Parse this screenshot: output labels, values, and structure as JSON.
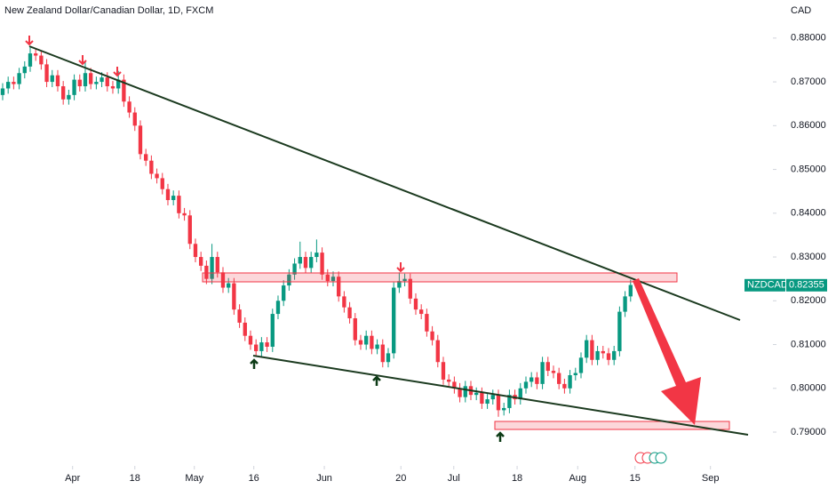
{
  "chart_data": {
    "type": "candlestick",
    "title": "New Zealand Dollar/Canadian Dollar, 1D, FXCM",
    "currency": "CAD",
    "up_color": "#089981",
    "down_color": "#f23645",
    "last_price": {
      "name": "NZDCAD",
      "value": 0.82355
    },
    "xlim": [
      -0.48,
      139.84
    ],
    "xticks": [
      {
        "value": 12.7,
        "label": "Apr"
      },
      {
        "value": 24.0,
        "label": "18"
      },
      {
        "value": 34.8,
        "label": "May"
      },
      {
        "value": 45.6,
        "label": "16"
      },
      {
        "value": 58.4,
        "label": "Jun"
      },
      {
        "value": 72.3,
        "label": "20"
      },
      {
        "value": 81.9,
        "label": "Jul"
      },
      {
        "value": 93.4,
        "label": "18"
      },
      {
        "value": 104.4,
        "label": "Aug"
      },
      {
        "value": 114.8,
        "label": "15"
      },
      {
        "value": 128.5,
        "label": "Sep"
      }
    ],
    "ylim": [
      0.7831,
      0.8887
    ],
    "yticks": [
      {
        "value": 0.79,
        "label": "0.79000"
      },
      {
        "value": 0.8,
        "label": "0.80000"
      },
      {
        "value": 0.81,
        "label": "0.81000"
      },
      {
        "value": 0.82,
        "label": "0.82000"
      },
      {
        "value": 0.83,
        "label": "0.83000"
      },
      {
        "value": 0.84,
        "label": "0.84000"
      },
      {
        "value": 0.85,
        "label": "0.85000"
      },
      {
        "value": 0.86,
        "label": "0.86000"
      },
      {
        "value": 0.87,
        "label": "0.87000"
      },
      {
        "value": 0.88,
        "label": "0.88000"
      }
    ],
    "ohlc": [
      [
        0.867,
        0.8697,
        0.8658,
        0.8685
      ],
      [
        0.8685,
        0.8712,
        0.8673,
        0.87
      ],
      [
        0.87,
        0.8712,
        0.8683,
        0.8695
      ],
      [
        0.8695,
        0.8732,
        0.8683,
        0.872
      ],
      [
        0.872,
        0.8747,
        0.8708,
        0.8735
      ],
      [
        0.8735,
        0.878,
        0.8723,
        0.8765
      ],
      [
        0.8765,
        0.8777,
        0.8748,
        0.876
      ],
      [
        0.876,
        0.8772,
        0.8728,
        0.874
      ],
      [
        0.874,
        0.8752,
        0.8688,
        0.87
      ],
      [
        0.87,
        0.8727,
        0.8688,
        0.8715
      ],
      [
        0.8715,
        0.8727,
        0.8678,
        0.869
      ],
      [
        0.869,
        0.8702,
        0.8648,
        0.866
      ],
      [
        0.866,
        0.8682,
        0.8648,
        0.867
      ],
      [
        0.867,
        0.8717,
        0.8658,
        0.8705
      ],
      [
        0.8705,
        0.8717,
        0.8678,
        0.869
      ],
      [
        0.869,
        0.8745,
        0.8678,
        0.872
      ],
      [
        0.872,
        0.8732,
        0.8683,
        0.8695
      ],
      [
        0.8695,
        0.8712,
        0.8683,
        0.87
      ],
      [
        0.87,
        0.8722,
        0.8688,
        0.871
      ],
      [
        0.871,
        0.8722,
        0.8678,
        0.869
      ],
      [
        0.869,
        0.8702,
        0.8673,
        0.8685
      ],
      [
        0.8685,
        0.8725,
        0.8673,
        0.8705
      ],
      [
        0.8705,
        0.8717,
        0.8643,
        0.8655
      ],
      [
        0.8655,
        0.8667,
        0.8618,
        0.863
      ],
      [
        0.863,
        0.8642,
        0.8588,
        0.86
      ],
      [
        0.86,
        0.8612,
        0.8523,
        0.8535
      ],
      [
        0.8535,
        0.8547,
        0.8508,
        0.852
      ],
      [
        0.852,
        0.8532,
        0.8478,
        0.849
      ],
      [
        0.849,
        0.8502,
        0.8468,
        0.848
      ],
      [
        0.848,
        0.8492,
        0.8443,
        0.8455
      ],
      [
        0.8455,
        0.8467,
        0.8418,
        0.843
      ],
      [
        0.843,
        0.8452,
        0.8418,
        0.844
      ],
      [
        0.844,
        0.8452,
        0.8388,
        0.84
      ],
      [
        0.84,
        0.8412,
        0.8383,
        0.8395
      ],
      [
        0.8395,
        0.8407,
        0.8318,
        0.833
      ],
      [
        0.833,
        0.8342,
        0.8288,
        0.83
      ],
      [
        0.83,
        0.8312,
        0.8268,
        0.828
      ],
      [
        0.828,
        0.8292,
        0.8238,
        0.825
      ],
      [
        0.825,
        0.833,
        0.8238,
        0.83
      ],
      [
        0.83,
        0.8312,
        0.8253,
        0.8265
      ],
      [
        0.8265,
        0.8277,
        0.8218,
        0.823
      ],
      [
        0.823,
        0.8252,
        0.8218,
        0.824
      ],
      [
        0.824,
        0.8252,
        0.8168,
        0.818
      ],
      [
        0.818,
        0.8192,
        0.8138,
        0.815
      ],
      [
        0.815,
        0.8162,
        0.8108,
        0.812
      ],
      [
        0.812,
        0.8132,
        0.8088,
        0.81
      ],
      [
        0.81,
        0.8112,
        0.8073,
        0.8085
      ],
      [
        0.8085,
        0.8117,
        0.8073,
        0.8105
      ],
      [
        0.8105,
        0.8117,
        0.8083,
        0.8095
      ],
      [
        0.8095,
        0.8182,
        0.8083,
        0.817
      ],
      [
        0.817,
        0.8212,
        0.8158,
        0.82
      ],
      [
        0.82,
        0.8247,
        0.8188,
        0.8235
      ],
      [
        0.8235,
        0.8272,
        0.8223,
        0.826
      ],
      [
        0.826,
        0.8297,
        0.8248,
        0.8285
      ],
      [
        0.8285,
        0.8335,
        0.8273,
        0.83
      ],
      [
        0.83,
        0.8312,
        0.8263,
        0.8275
      ],
      [
        0.8275,
        0.8312,
        0.8263,
        0.83
      ],
      [
        0.83,
        0.834,
        0.8288,
        0.831
      ],
      [
        0.831,
        0.8322,
        0.8248,
        0.826
      ],
      [
        0.826,
        0.8272,
        0.8233,
        0.8245
      ],
      [
        0.8245,
        0.8267,
        0.8233,
        0.8255
      ],
      [
        0.8255,
        0.8267,
        0.8198,
        0.821
      ],
      [
        0.821,
        0.8222,
        0.8173,
        0.8185
      ],
      [
        0.8185,
        0.8197,
        0.8148,
        0.816
      ],
      [
        0.816,
        0.8172,
        0.8098,
        0.811
      ],
      [
        0.811,
        0.8122,
        0.8088,
        0.81
      ],
      [
        0.81,
        0.8132,
        0.8088,
        0.812
      ],
      [
        0.812,
        0.8132,
        0.8078,
        0.809
      ],
      [
        0.809,
        0.8112,
        0.8078,
        0.81
      ],
      [
        0.81,
        0.8112,
        0.8048,
        0.806
      ],
      [
        0.806,
        0.8092,
        0.8048,
        0.808
      ],
      [
        0.808,
        0.8242,
        0.8068,
        0.823
      ],
      [
        0.823,
        0.8265,
        0.8218,
        0.8245
      ],
      [
        0.8245,
        0.8262,
        0.8233,
        0.825
      ],
      [
        0.825,
        0.8262,
        0.8193,
        0.8205
      ],
      [
        0.8205,
        0.8217,
        0.8168,
        0.818
      ],
      [
        0.818,
        0.8192,
        0.8158,
        0.817
      ],
      [
        0.817,
        0.8182,
        0.8118,
        0.813
      ],
      [
        0.813,
        0.8142,
        0.8098,
        0.811
      ],
      [
        0.811,
        0.8122,
        0.8048,
        0.806
      ],
      [
        0.806,
        0.8072,
        0.8008,
        0.802
      ],
      [
        0.802,
        0.8032,
        0.8003,
        0.8015
      ],
      [
        0.8015,
        0.8027,
        0.7988,
        0.8
      ],
      [
        0.8,
        0.8012,
        0.7968,
        0.798
      ],
      [
        0.798,
        0.8017,
        0.7968,
        0.8005
      ],
      [
        0.8005,
        0.8017,
        0.7973,
        0.7985
      ],
      [
        0.7985,
        0.8002,
        0.7973,
        0.799
      ],
      [
        0.799,
        0.8002,
        0.7953,
        0.7965
      ],
      [
        0.7965,
        0.7987,
        0.7953,
        0.7975
      ],
      [
        0.7975,
        0.7997,
        0.7963,
        0.7985
      ],
      [
        0.7985,
        0.7997,
        0.7935,
        0.795
      ],
      [
        0.795,
        0.7967,
        0.7938,
        0.7955
      ],
      [
        0.7955,
        0.7997,
        0.7943,
        0.7985
      ],
      [
        0.7985,
        0.7997,
        0.7963,
        0.7975
      ],
      [
        0.7975,
        0.8012,
        0.7963,
        0.8
      ],
      [
        0.8,
        0.8027,
        0.7988,
        0.8015
      ],
      [
        0.8015,
        0.8037,
        0.8003,
        0.8025
      ],
      [
        0.8025,
        0.8037,
        0.7998,
        0.801
      ],
      [
        0.801,
        0.8072,
        0.7998,
        0.806
      ],
      [
        0.806,
        0.8072,
        0.8028,
        0.804
      ],
      [
        0.804,
        0.8052,
        0.8023,
        0.8035
      ],
      [
        0.8035,
        0.8047,
        0.7998,
        0.801
      ],
      [
        0.801,
        0.8022,
        0.7988,
        0.8
      ],
      [
        0.8,
        0.8042,
        0.7988,
        0.803
      ],
      [
        0.803,
        0.8047,
        0.8018,
        0.8035
      ],
      [
        0.8035,
        0.8082,
        0.8023,
        0.807
      ],
      [
        0.807,
        0.8122,
        0.8058,
        0.811
      ],
      [
        0.811,
        0.8122,
        0.8053,
        0.8065
      ],
      [
        0.8065,
        0.8097,
        0.8053,
        0.8085
      ],
      [
        0.8085,
        0.8097,
        0.8068,
        0.808
      ],
      [
        0.808,
        0.8092,
        0.8053,
        0.8065
      ],
      [
        0.8065,
        0.8097,
        0.8053,
        0.8085
      ],
      [
        0.8085,
        0.8187,
        0.8073,
        0.8175
      ],
      [
        0.8175,
        0.8222,
        0.8163,
        0.821
      ],
      [
        0.821,
        0.8248,
        0.8198,
        0.8236
      ]
    ]
  }
}
